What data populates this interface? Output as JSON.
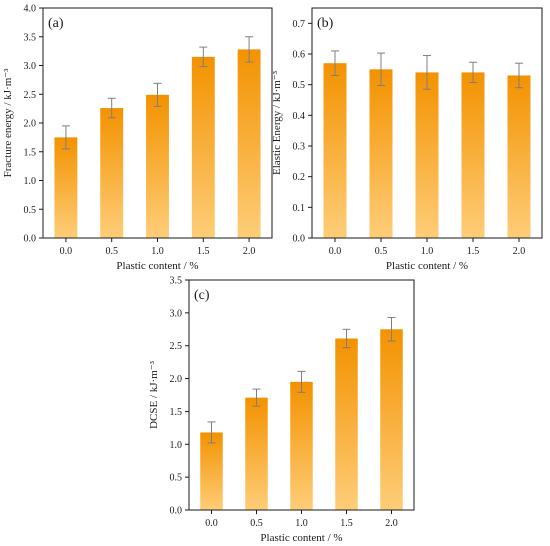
{
  "chart_data": [
    {
      "type": "bar",
      "panel_label": "(a)",
      "categories": [
        "0.0",
        "0.5",
        "1.0",
        "1.5",
        "2.0"
      ],
      "values": [
        1.75,
        2.26,
        2.49,
        3.15,
        3.28
      ],
      "errors": [
        0.2,
        0.17,
        0.2,
        0.17,
        0.22
      ],
      "xlabel": "Plastic content / %",
      "ylabel": "Fracture energy / kJ·m⁻³",
      "ylim": [
        0,
        4.0
      ],
      "yticks": [
        "0.0",
        "0.5",
        "1.0",
        "1.5",
        "2.0",
        "2.5",
        "3.0",
        "3.5",
        "4.0"
      ],
      "grid": false
    },
    {
      "type": "bar",
      "panel_label": "(b)",
      "categories": [
        "0.0",
        "0.5",
        "1.0",
        "1.5",
        "2.0"
      ],
      "values": [
        0.57,
        0.55,
        0.54,
        0.54,
        0.53
      ],
      "errors": [
        0.04,
        0.053,
        0.055,
        0.033,
        0.04
      ],
      "xlabel": "Plastic content / %",
      "ylabel": "Elastic Energy / kJ·m⁻³",
      "ylim": [
        0,
        0.75
      ],
      "yticks": [
        "0.0",
        "0.1",
        "0.2",
        "0.3",
        "0.4",
        "0.5",
        "0.6",
        "0.7"
      ],
      "grid": false
    },
    {
      "type": "bar",
      "panel_label": "(c)",
      "categories": [
        "0.0",
        "0.5",
        "1.0",
        "1.5",
        "2.0"
      ],
      "values": [
        1.18,
        1.71,
        1.95,
        2.61,
        2.75
      ],
      "errors": [
        0.16,
        0.13,
        0.16,
        0.14,
        0.18
      ],
      "xlabel": "Plastic content / %",
      "ylabel": "DCSE / kJ·m⁻³",
      "ylim": [
        0,
        3.5
      ],
      "yticks": [
        "0.0",
        "0.5",
        "1.0",
        "1.5",
        "2.0",
        "2.5",
        "3.0",
        "3.5"
      ],
      "grid": false
    }
  ],
  "colors": {
    "bar_top": "#f39200",
    "bar_bottom": "#fecd78",
    "error_bar": "#7f7f7f",
    "axis": "#1a1a1a"
  }
}
